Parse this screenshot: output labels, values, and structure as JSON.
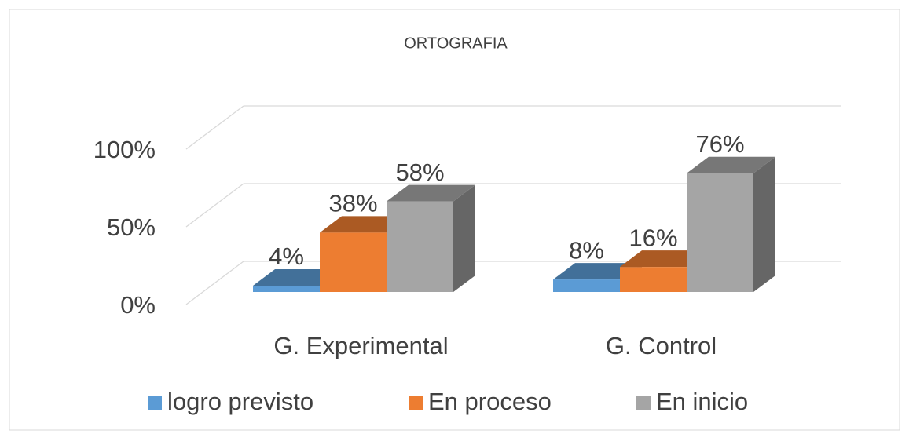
{
  "chart_data": {
    "type": "bar3d",
    "title": "ORTOGRAFIA",
    "categories": [
      "G. Experimental",
      "G. Control"
    ],
    "series": [
      {
        "name": "logro previsto",
        "color": "#5b9bd5",
        "values": [
          4,
          8
        ],
        "value_labels": [
          "4%",
          "8%"
        ]
      },
      {
        "name": "En proceso",
        "color": "#ed7d31",
        "values": [
          38,
          16
        ],
        "value_labels": [
          "38%",
          "16%"
        ]
      },
      {
        "name": "En inicio",
        "color": "#a5a5a5",
        "values": [
          58,
          76
        ],
        "value_labels": [
          "58%",
          "76%"
        ]
      }
    ],
    "ylim": [
      0,
      100
    ],
    "yticks": [
      {
        "value": 0,
        "label": "0%"
      },
      {
        "value": 50,
        "label": "50%"
      },
      {
        "value": 100,
        "label": "100%"
      }
    ],
    "grid": true
  }
}
